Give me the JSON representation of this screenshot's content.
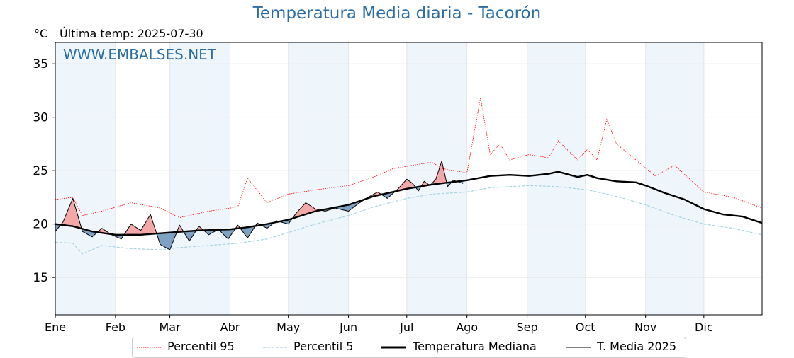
{
  "page": {
    "title": "Temperatura Media diaria - Tacorón",
    "unit": "°C",
    "last_temp": "Última temp: 2025-07-30",
    "watermark": "WWW.EMBALSES.NET"
  },
  "colors": {
    "title": "#2c6ea3",
    "p95": "#ff0000",
    "p5": "#a6d4e0",
    "median": "#000000",
    "media2025": "#000000",
    "above_fill": "#f4a7a7",
    "below_fill": "#7ea2c4",
    "band": "#eef5fb"
  },
  "legend": [
    {
      "key": "p95",
      "label": "Percentil 95"
    },
    {
      "key": "p5",
      "label": "Percentil 5"
    },
    {
      "key": "median",
      "label": "Temperatura Mediana"
    },
    {
      "key": "media2025",
      "label": "T. Media 2025"
    }
  ],
  "chart_data": {
    "type": "line",
    "title": "Temperatura Media diaria - Tacorón",
    "ylabel": "°C",
    "ylim": [
      11.5,
      37
    ],
    "yticks": [
      15,
      20,
      25,
      30,
      35
    ],
    "x_unit": "day_of_year",
    "xlim": [
      1,
      365
    ],
    "months": [
      {
        "label": "Ene",
        "day": 1
      },
      {
        "label": "Feb",
        "day": 32
      },
      {
        "label": "Mar",
        "day": 60
      },
      {
        "label": "Abr",
        "day": 91
      },
      {
        "label": "May",
        "day": 121
      },
      {
        "label": "Jun",
        "day": 152
      },
      {
        "label": "Jul",
        "day": 182
      },
      {
        "label": "Ago",
        "day": 213
      },
      {
        "label": "Sep",
        "day": 244
      },
      {
        "label": "Oct",
        "day": 274
      },
      {
        "label": "Nov",
        "day": 305
      },
      {
        "label": "Dic",
        "day": 335
      }
    ],
    "shaded_months": [
      0,
      2,
      4,
      6,
      8,
      10
    ],
    "grid": true,
    "series": [
      {
        "key": "p95",
        "name": "Percentil 95",
        "style": "dotted",
        "x": [
          1,
          10,
          15,
          25,
          40,
          55,
          65,
          80,
          95,
          100,
          110,
          121,
          135,
          152,
          165,
          175,
          182,
          195,
          200,
          213,
          220,
          225,
          230,
          235,
          245,
          255,
          260,
          270,
          275,
          280,
          285,
          290,
          300,
          310,
          320,
          335,
          350,
          365
        ],
        "values": [
          22.3,
          22.5,
          20.8,
          21.2,
          22.0,
          21.5,
          20.6,
          21.2,
          21.6,
          24.3,
          22.0,
          22.8,
          23.2,
          23.6,
          24.4,
          25.2,
          25.4,
          25.8,
          25.2,
          24.8,
          31.8,
          26.5,
          27.5,
          26.0,
          26.5,
          26.2,
          27.8,
          26.0,
          27.0,
          26.0,
          29.8,
          27.5,
          26.0,
          24.5,
          25.5,
          23.0,
          22.5,
          21.5
        ]
      },
      {
        "key": "p5",
        "name": "Percentil 5",
        "style": "dashed",
        "x": [
          1,
          10,
          15,
          25,
          40,
          55,
          65,
          80,
          95,
          110,
          121,
          135,
          152,
          165,
          182,
          195,
          213,
          225,
          245,
          260,
          275,
          290,
          305,
          320,
          335,
          350,
          365
        ],
        "values": [
          18.3,
          18.2,
          17.2,
          18.0,
          17.7,
          17.6,
          17.8,
          18.0,
          18.2,
          18.6,
          19.2,
          20.0,
          20.8,
          21.6,
          22.4,
          22.8,
          23.0,
          23.4,
          23.6,
          23.5,
          23.2,
          22.6,
          21.8,
          20.8,
          20.0,
          19.6,
          19.0
        ]
      },
      {
        "key": "median",
        "name": "Temperatura Mediana",
        "style": "thick",
        "x": [
          1,
          10,
          20,
          32,
          45,
          60,
          75,
          91,
          100,
          110,
          121,
          135,
          152,
          165,
          182,
          195,
          213,
          225,
          235,
          245,
          255,
          260,
          270,
          275,
          280,
          290,
          300,
          305,
          315,
          325,
          335,
          345,
          355,
          365
        ],
        "values": [
          20.0,
          19.8,
          19.3,
          19.0,
          19.0,
          19.2,
          19.4,
          19.5,
          19.7,
          20.0,
          20.4,
          21.2,
          21.8,
          22.6,
          23.3,
          23.7,
          24.1,
          24.5,
          24.6,
          24.5,
          24.7,
          24.9,
          24.4,
          24.6,
          24.3,
          24.0,
          23.9,
          23.6,
          22.9,
          22.3,
          21.4,
          20.9,
          20.7,
          20.1
        ]
      },
      {
        "key": "media2025",
        "name": "T. Media 2025",
        "style": "thin",
        "x": [
          1,
          5,
          10,
          15,
          20,
          25,
          30,
          35,
          40,
          45,
          50,
          55,
          60,
          65,
          70,
          75,
          80,
          85,
          90,
          95,
          100,
          105,
          110,
          115,
          121,
          125,
          130,
          135,
          140,
          145,
          152,
          157,
          162,
          167,
          172,
          177,
          182,
          185,
          188,
          191,
          194,
          197,
          200,
          203,
          206,
          211
        ],
        "values": [
          19.3,
          20.2,
          22.4,
          19.3,
          18.8,
          19.6,
          19.0,
          18.6,
          20.0,
          19.4,
          20.9,
          18.1,
          17.6,
          19.9,
          18.4,
          19.8,
          19.0,
          19.5,
          18.6,
          19.9,
          18.7,
          20.1,
          19.6,
          20.3,
          20.0,
          21.0,
          22.0,
          21.4,
          21.2,
          21.5,
          21.2,
          21.9,
          22.5,
          23.0,
          22.4,
          23.2,
          24.2,
          23.8,
          23.1,
          24.0,
          23.6,
          24.2,
          25.9,
          23.5,
          24.1,
          23.8
        ]
      }
    ]
  }
}
